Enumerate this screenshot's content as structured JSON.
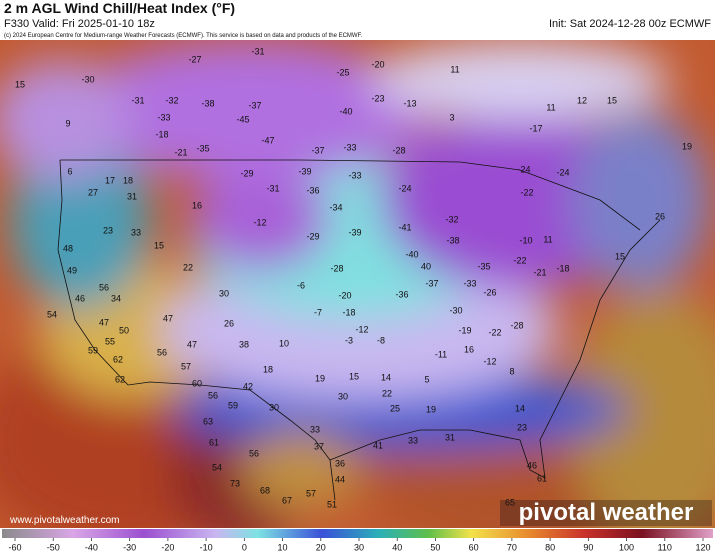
{
  "header": {
    "title": "2 m AGL Wind Chill/Heat Index (°F)",
    "valid": "F330 Valid: Fri 2025-01-10 18z",
    "init": "Init: Sat 2024-12-28 00z ECMWF",
    "copyright": "(c) 2024 European Centre for Medium-range Weather Forecasts (ECMWF). This service is based on data and products of the ECMWF."
  },
  "map": {
    "labels": [
      -31,
      -27,
      -20,
      -25,
      11,
      -30,
      15,
      -37,
      -38,
      -32,
      -31,
      -40,
      -23,
      -13,
      11,
      12,
      15,
      9,
      -33,
      -45,
      -18,
      -47,
      -37,
      -33,
      -28,
      3,
      -35,
      -21,
      -17,
      19,
      6,
      17,
      18,
      -29,
      -39,
      -33,
      -24,
      -24,
      27,
      31,
      16,
      -31,
      -36,
      -24,
      -22,
      23,
      33,
      15,
      -12,
      -34,
      -41,
      -32,
      26,
      48,
      -29,
      -39,
      -38,
      -10,
      11,
      22,
      15,
      49,
      -40,
      -22,
      -28,
      40,
      -35,
      -21,
      -18,
      56,
      34,
      30,
      -6,
      -37,
      -33,
      -26,
      46,
      -20,
      -36,
      54,
      47,
      50,
      55,
      47,
      26,
      -7,
      -18,
      -30,
      -22,
      -28,
      -19,
      59,
      62,
      56,
      47,
      38,
      10,
      -12,
      -3,
      -8,
      -11,
      16,
      -12,
      62,
      57,
      18,
      19,
      15,
      14,
      5,
      8,
      60,
      42,
      56,
      59,
      30,
      30,
      22,
      14,
      63,
      33,
      25,
      19,
      61,
      37,
      41,
      33,
      31,
      23,
      56,
      36,
      46,
      54,
      73,
      44,
      61,
      68,
      57,
      67,
      65,
      51
    ]
  },
  "colorbar": {
    "ticks": [
      -60,
      -50,
      -40,
      -30,
      -20,
      -10,
      0,
      10,
      20,
      30,
      40,
      50,
      60,
      70,
      80,
      90,
      100,
      110,
      120
    ]
  },
  "footer": {
    "url": "www.pivotalweather.com",
    "brand": "pivotal weather"
  }
}
